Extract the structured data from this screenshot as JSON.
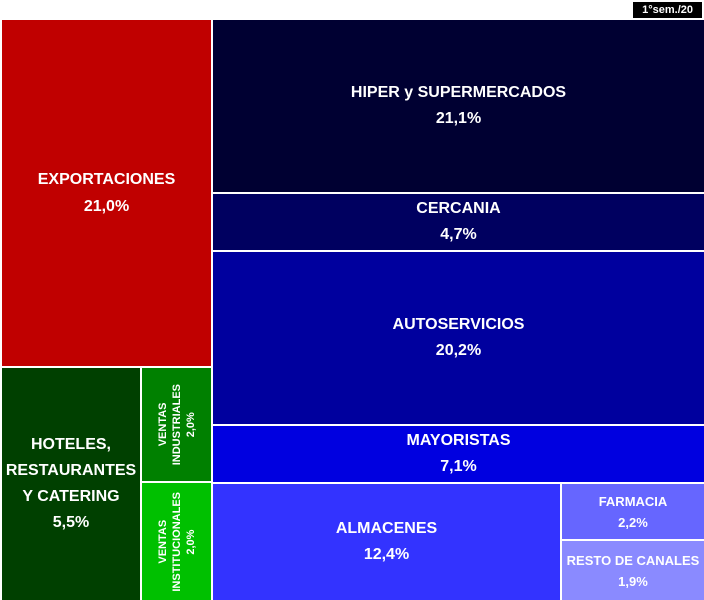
{
  "period_label": "1°sem./20",
  "chart_data": {
    "type": "treemap",
    "title": "",
    "items": [
      {
        "id": "exportaciones",
        "label": "EXPORTACIONES",
        "value_label": "21,0%",
        "value": 21.0,
        "color": "#C00000"
      },
      {
        "id": "hoteles",
        "label": "HOTELES, RESTAURANTES Y CATERING",
        "value_label": "5,5%",
        "value": 5.5,
        "color": "#004000"
      },
      {
        "id": "ventas-industriales",
        "label": "VENTAS INDUSTRIALES",
        "value_label": "2,0%",
        "value": 2.0,
        "color": "#008000"
      },
      {
        "id": "ventas-institucionales",
        "label": "VENTAS INSTITUCIONALES",
        "value_label": "2,0%",
        "value": 2.0,
        "color": "#00C000"
      },
      {
        "id": "hiper",
        "label": "HIPER y SUPERMERCADOS",
        "value_label": "21,1%",
        "value": 21.1,
        "color": "#000032"
      },
      {
        "id": "cercania",
        "label": "CERCANIA",
        "value_label": "4,7%",
        "value": 4.7,
        "color": "#000060"
      },
      {
        "id": "autoservicios",
        "label": "AUTOSERVICIOS",
        "value_label": "20,2%",
        "value": 20.2,
        "color": "#00009E"
      },
      {
        "id": "mayoristas",
        "label": "MAYORISTAS",
        "value_label": "7,1%",
        "value": 7.1,
        "color": "#0000E0"
      },
      {
        "id": "almacenes",
        "label": "ALMACENES",
        "value_label": "12,4%",
        "value": 12.4,
        "color": "#3333FF"
      },
      {
        "id": "farmacia",
        "label": "FARMACIA",
        "value_label": "2,2%",
        "value": 2.2,
        "color": "#6666FF"
      },
      {
        "id": "resto",
        "label": "RESTO DE CANALES",
        "value_label": "1,9%",
        "value": 1.9,
        "color": "#8A8AFF"
      }
    ]
  }
}
